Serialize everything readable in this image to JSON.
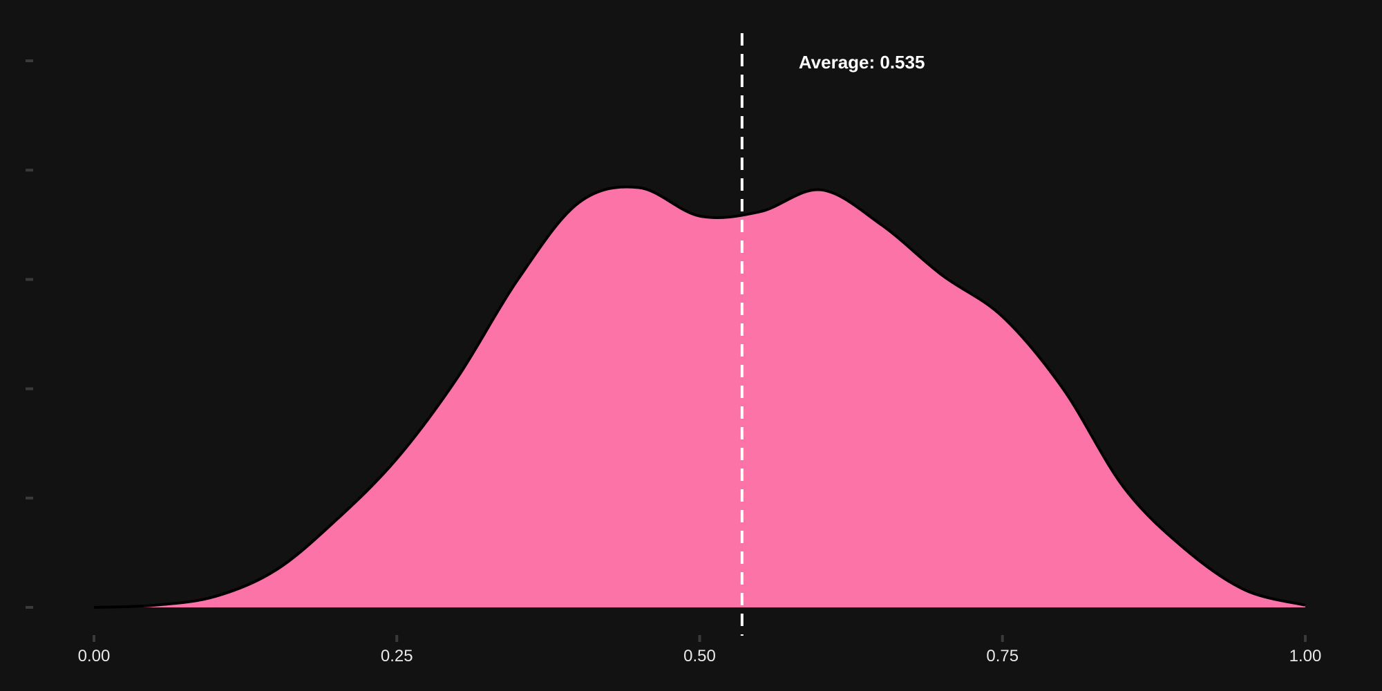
{
  "chart_data": {
    "type": "area",
    "title": "",
    "xlabel": "",
    "ylabel": "",
    "xlim": [
      0.0,
      1.0
    ],
    "ylim": [
      0.0,
      2.5
    ],
    "grid": false,
    "x_ticks": [
      "0.00",
      "0.25",
      "0.50",
      "0.75",
      "1.00"
    ],
    "x_tick_values": [
      0.0,
      0.25,
      0.5,
      0.75,
      1.0
    ],
    "y_tick_values": [
      0.0,
      0.5,
      1.0,
      1.5,
      2.0,
      2.5
    ],
    "y_tick_labels_shown": false,
    "series": [
      {
        "fill_color": "#FC73A8",
        "line_color": "#000000",
        "points": [
          [
            0.0,
            0.0
          ],
          [
            0.05,
            0.01
          ],
          [
            0.1,
            0.05
          ],
          [
            0.15,
            0.17
          ],
          [
            0.2,
            0.4
          ],
          [
            0.25,
            0.68
          ],
          [
            0.3,
            1.05
          ],
          [
            0.35,
            1.5
          ],
          [
            0.4,
            1.85
          ],
          [
            0.45,
            1.92
          ],
          [
            0.5,
            1.79
          ],
          [
            0.55,
            1.81
          ],
          [
            0.6,
            1.91
          ],
          [
            0.65,
            1.75
          ],
          [
            0.7,
            1.52
          ],
          [
            0.75,
            1.33
          ],
          [
            0.8,
            1.0
          ],
          [
            0.85,
            0.55
          ],
          [
            0.9,
            0.27
          ],
          [
            0.95,
            0.08
          ],
          [
            1.0,
            0.01
          ]
        ]
      }
    ],
    "reference_line": {
      "x": 0.535,
      "style": "dashed",
      "color": "#ffffff"
    },
    "annotation": {
      "text": "Average: 0.535"
    }
  }
}
